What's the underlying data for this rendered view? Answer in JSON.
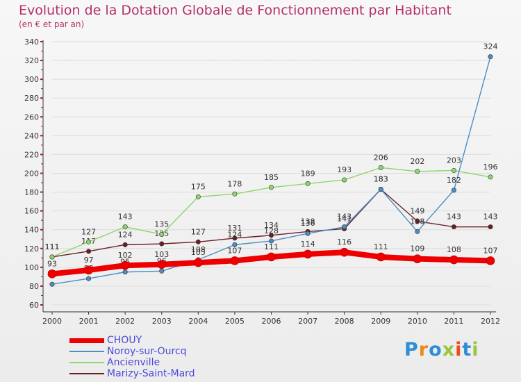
{
  "title": "Evolution de la Dotation Globale de Fonctionnement par Habitant",
  "subtitle": "(en € et par an)",
  "logo": {
    "text": "Proxiti",
    "colors": [
      "#2d8ed6",
      "#e88a1c",
      "#2d8ed6",
      "#9bc53d",
      "#e84f1c",
      "#2d8ed6",
      "#9bc53d"
    ]
  },
  "chart_data": {
    "type": "line",
    "title": "Evolution de la Dotation Globale de Fonctionnement par Habitant",
    "ylabel": "(en € et par an)",
    "xlabel": "",
    "ylim": [
      60,
      340
    ],
    "yticks": [
      60,
      80,
      100,
      120,
      140,
      160,
      180,
      200,
      220,
      240,
      260,
      280,
      300,
      320,
      340
    ],
    "categories": [
      "2000",
      "2001",
      "2002",
      "2003",
      "2004",
      "2005",
      "2006",
      "2007",
      "2008",
      "2009",
      "2010",
      "2011",
      "2012"
    ],
    "series": [
      {
        "name": "Marizy-Saint-Mard",
        "color": "#6b1e26",
        "values": [
          111,
          117,
          124,
          125,
          127,
          131,
          134,
          138,
          141,
          183,
          149,
          143,
          143
        ],
        "labels": [
          "111",
          "117",
          "124",
          "125",
          "127",
          "131",
          "134",
          "138",
          "141",
          "183",
          "149",
          "143",
          "143"
        ]
      },
      {
        "name": "Ancienville",
        "color": "#8fd56a",
        "values": [
          111,
          127,
          143,
          135,
          175,
          178,
          185,
          189,
          193,
          206,
          202,
          203,
          196
        ],
        "labels": [
          "111",
          "127",
          "143",
          "135",
          "175",
          "178",
          "185",
          "189",
          "193",
          "206",
          "202",
          "203",
          "196"
        ]
      },
      {
        "name": "Noroy-sur-Ourcq",
        "color": "#4b8dc4",
        "values": [
          82,
          88,
          95,
          96,
          108,
          124,
          128,
          136,
          143,
          183,
          138,
          182,
          324
        ],
        "labels": [
          "82",
          "88",
          "95",
          "96",
          "108",
          "124",
          "128",
          "136",
          "143",
          "183",
          "138",
          "182",
          "324"
        ]
      },
      {
        "name": "CHOUY",
        "color": "#ee0000",
        "values": [
          93,
          97,
          102,
          103,
          105,
          107,
          111,
          114,
          116,
          111,
          109,
          108,
          107
        ],
        "labels": [
          "93",
          "97",
          "102",
          "103",
          "105",
          "107",
          "111",
          "114",
          "116",
          "111",
          "109",
          "108",
          "107"
        ]
      }
    ],
    "legend": [
      "CHOUY",
      "Noroy-sur-Ourcq",
      "Ancienville",
      "Marizy-Saint-Mard"
    ]
  }
}
